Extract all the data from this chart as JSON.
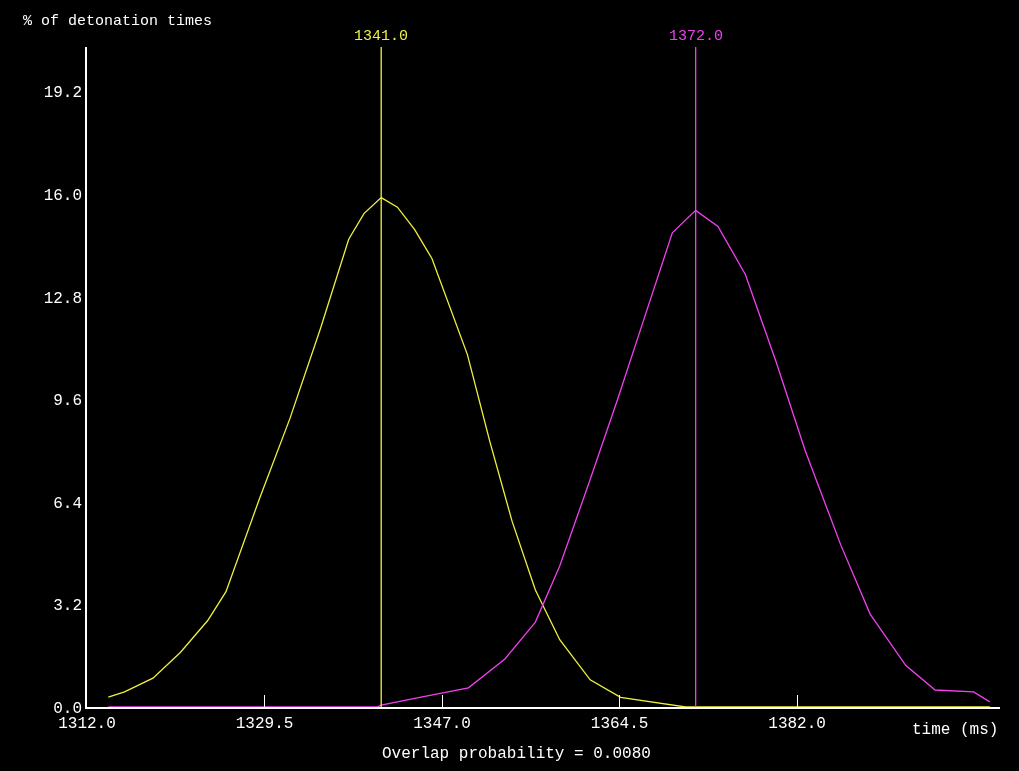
{
  "chart_data": {
    "type": "line",
    "ylabel": "% of detonation times",
    "xlabel": "time (ms)",
    "annotations": [
      "Overlap probability = 0.0080"
    ],
    "series": [
      {
        "color": "#f0f040",
        "x": [
          1314.1,
          1315.7,
          1318.5,
          1321.2,
          1323.9,
          1325.7,
          1329.0,
          1332.0,
          1335.0,
          1337.8,
          1339.3,
          1341.0,
          1342.6,
          1344.3,
          1346.0,
          1349.5,
          1351.7,
          1353.9,
          1356.2,
          1358.6,
          1361.6,
          1364.6,
          1371.0,
          1401.0
        ],
        "values": [
          0.31,
          0.47,
          0.9,
          1.7,
          2.7,
          3.6,
          6.5,
          9.0,
          11.8,
          14.6,
          15.4,
          15.9,
          15.6,
          14.9,
          14.0,
          11.0,
          8.3,
          5.8,
          3.65,
          2.1,
          0.85,
          0.3,
          0,
          0
        ]
      },
      {
        "color": "#f040f0",
        "x": [
          1314.1,
          1340.6,
          1341.0,
          1344.8,
          1349.6,
          1353.2,
          1356.2,
          1358.6,
          1361.6,
          1364.3,
          1367.0,
          1369.7,
          1372.0,
          1374.2,
          1376.9,
          1379.9,
          1382.8,
          1386.3,
          1389.2,
          1392.7,
          1395.6,
          1399.4,
          1401.0
        ],
        "values": [
          0,
          0,
          0.06,
          0.3,
          0.6,
          1.5,
          2.65,
          4.4,
          7.1,
          9.6,
          12.2,
          14.8,
          15.5,
          15.0,
          13.5,
          10.8,
          8.0,
          5.06,
          2.9,
          1.3,
          0.53,
          0.47,
          0.16
        ]
      }
    ],
    "ref_lines": [
      {
        "axis": "x",
        "value": 1341.0,
        "label": "1341.0",
        "color": "#f0f040"
      },
      {
        "axis": "x",
        "value": 1372.0,
        "label": "1372.0",
        "color": "#f040f0"
      }
    ],
    "xlim": [
      1312,
      1402
    ],
    "xticks": [
      {
        "value": 1312,
        "label": "1312.0"
      },
      {
        "value": 1329.5,
        "label": "1329.5"
      },
      {
        "value": 1347,
        "label": "1347.0"
      },
      {
        "value": 1364.5,
        "label": "1364.5"
      },
      {
        "value": 1382,
        "label": "1382.0"
      }
    ],
    "ylim": [
      0,
      20.6
    ],
    "yticks": [
      {
        "value": 0,
        "label": "0.0"
      },
      {
        "value": 3.2,
        "label": "3.2"
      },
      {
        "value": 6.4,
        "label": "6.4"
      },
      {
        "value": 9.6,
        "label": "9.6"
      },
      {
        "value": 12.8,
        "label": "12.8"
      },
      {
        "value": 16,
        "label": "16.0"
      },
      {
        "value": 19.2,
        "label": "19.2"
      }
    ],
    "marker": "none",
    "line_style": "solid"
  }
}
